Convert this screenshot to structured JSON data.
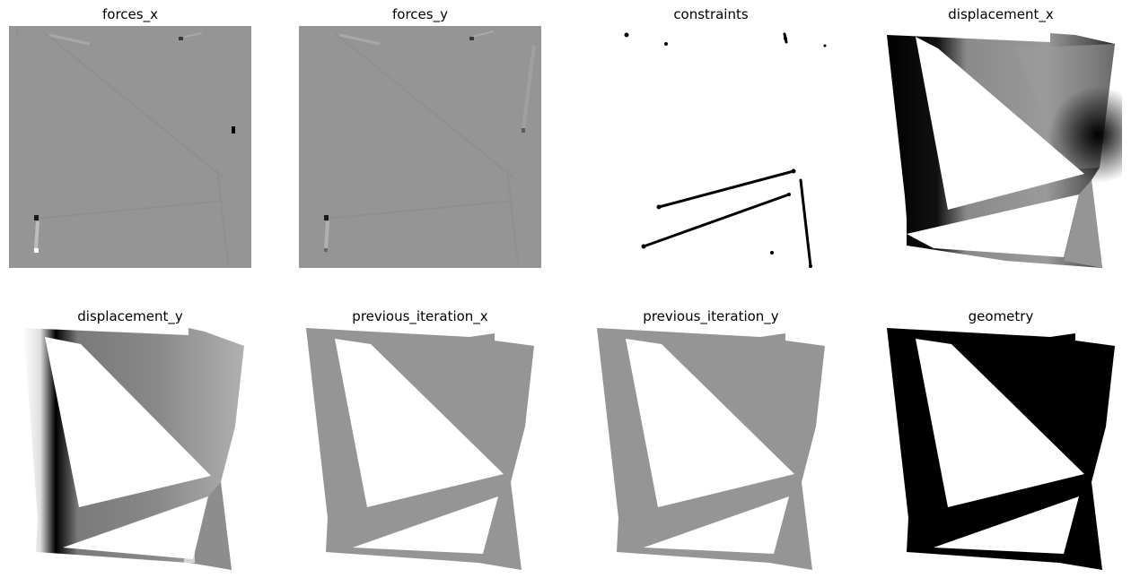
{
  "panels": [
    {
      "title": "forces_x"
    },
    {
      "title": "forces_y"
    },
    {
      "title": "constraints"
    },
    {
      "title": "displacement_x"
    },
    {
      "title": "displacement_y"
    },
    {
      "title": "previous_iteration_x"
    },
    {
      "title": "previous_iteration_y"
    },
    {
      "title": "geometry"
    }
  ],
  "colors": {
    "background": "#ffffff",
    "mid_gray": "#959595",
    "black": "#000000",
    "white": "#ffffff"
  }
}
